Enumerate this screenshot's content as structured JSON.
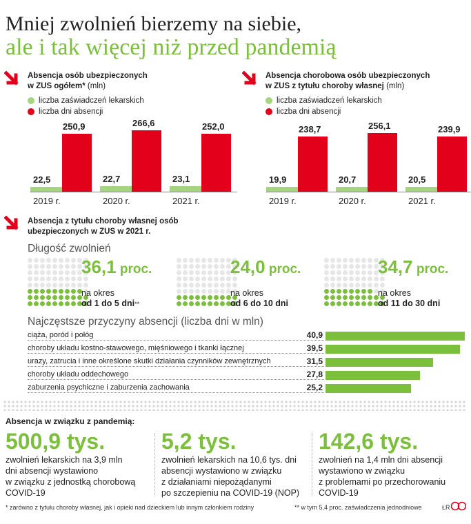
{
  "headline": {
    "line1": "Mniej zwolnień bierzemy na siebie,",
    "line2": "ale i tak więcej niż przed pandemią"
  },
  "colors": {
    "green": "#7cbf3c",
    "light_green": "#a5d57f",
    "red": "#e3001b",
    "grey_dot": "#e6e6e6"
  },
  "icons": [
    "arrow-down-right-icon"
  ],
  "chart_data": [
    {
      "type": "bar",
      "title": "Absencja osób ubezpieczonych w ZUS ogółem* (mln)",
      "title_main_1": "Absencja osób ubezpieczonych",
      "title_main_2": "w ZUS ogółem*",
      "title_unit": "(mln)",
      "categories": [
        "2019 r.",
        "2020 r.",
        "2021 r."
      ],
      "series": [
        {
          "name": "liczba zaświadczeń lekarskich",
          "color": "#a5d57f",
          "values": [
            22.5,
            22.7,
            23.1
          ],
          "labels": [
            "22,5",
            "22,7",
            "23,1"
          ]
        },
        {
          "name": "liczba dni absencji",
          "color": "#e3001b",
          "values": [
            250.9,
            266.6,
            252.0
          ],
          "labels": [
            "250,9",
            "266,6",
            "252,0"
          ]
        }
      ]
    },
    {
      "type": "bar",
      "title": "Absencja chorobowa osób ubezpieczonych w ZUS z tytułu choroby własnej (mln)",
      "title_main_1": "Absencja chorobowa osób ubezpieczonych",
      "title_main_2": "w ZUS z tytułu choroby własnej",
      "title_unit": "(mln)",
      "categories": [
        "2019 r.",
        "2020 r.",
        "2021 r."
      ],
      "series": [
        {
          "name": "liczba zaświadczeń lekarskich",
          "color": "#a5d57f",
          "values": [
            19.9,
            20.7,
            20.5
          ],
          "labels": [
            "19,9",
            "20,7",
            "20,5"
          ]
        },
        {
          "name": "liczba dni absencji",
          "color": "#e3001b",
          "values": [
            238.7,
            256.1,
            239.9
          ],
          "labels": [
            "238,7",
            "256,1",
            "239,9"
          ]
        }
      ]
    },
    {
      "type": "waffle",
      "title": "Długość zwolnień",
      "items": [
        {
          "value": 36.1,
          "value_label": "36,1",
          "unit": "proc.",
          "caption_1": "na okres",
          "caption_2": "od 1 do 5 dni",
          "footnote_mark": "**"
        },
        {
          "value": 24.0,
          "value_label": "24,0",
          "unit": "proc.",
          "caption_1": "na okres",
          "caption_2": "od 6 do 10 dni",
          "footnote_mark": ""
        },
        {
          "value": 34.7,
          "value_label": "34,7",
          "unit": "proc.",
          "caption_1": "na okres",
          "caption_2": "od 11 do 30 dni",
          "footnote_mark": ""
        }
      ]
    },
    {
      "type": "bar",
      "orientation": "horizontal",
      "title": "Najczęstsze przyczyny absencji (liczba dni w mln)",
      "categories": [
        "ciąża, poród i połóg",
        "choroby układu kostno-stawowego, mięśniowego i tkanki łącznej",
        "urazy, zatrucia i inne określone skutki działania czynników zewnętrznych",
        "choroby układu oddechowego",
        "zaburzenia psychiczne i zaburzenia zachowania"
      ],
      "values": [
        40.9,
        39.5,
        31.5,
        27.8,
        25.2
      ],
      "labels": [
        "40,9",
        "39,5",
        "31,5",
        "27,8",
        "25,2"
      ]
    }
  ],
  "section3_title_1": "Absencja z tytułu choroby własnej osób",
  "section3_title_2": "ubezpieczonych w ZUS w 2021 r.",
  "pandemic": {
    "title": "Absencja w związku z pandemią:",
    "items": [
      {
        "big": "500,9 tys.",
        "desc": [
          "zwolnień lekarskich na 3,9 mln",
          "dni absencji wystawiono",
          "w związku z jednostką chorobową",
          "COVID-19"
        ]
      },
      {
        "big": "5,2 tys.",
        "desc": [
          "zwolnień lekarskich na 10,6 tys. dni",
          "absencji wystawiono w związku",
          "z działaniami niepożądanymi",
          "po szczepieniu na COVID-19 (NOP)"
        ]
      },
      {
        "big": "142,6 tys.",
        "desc": [
          "zwolnień na 1,4 mln dni absencji",
          "wystawiono w związku",
          "z problemami po przechorowaniu",
          "COVID-19"
        ]
      }
    ]
  },
  "footnotes": {
    "f1": "* zarówno z tytułu choroby własnej, jak i opieki nad dzieckiem lub innym członkiem rodziny",
    "f2": "** w tym 5,4 proc. zaświadczenia jednodniowe",
    "credit": "ŁR",
    "logo": "GP"
  }
}
